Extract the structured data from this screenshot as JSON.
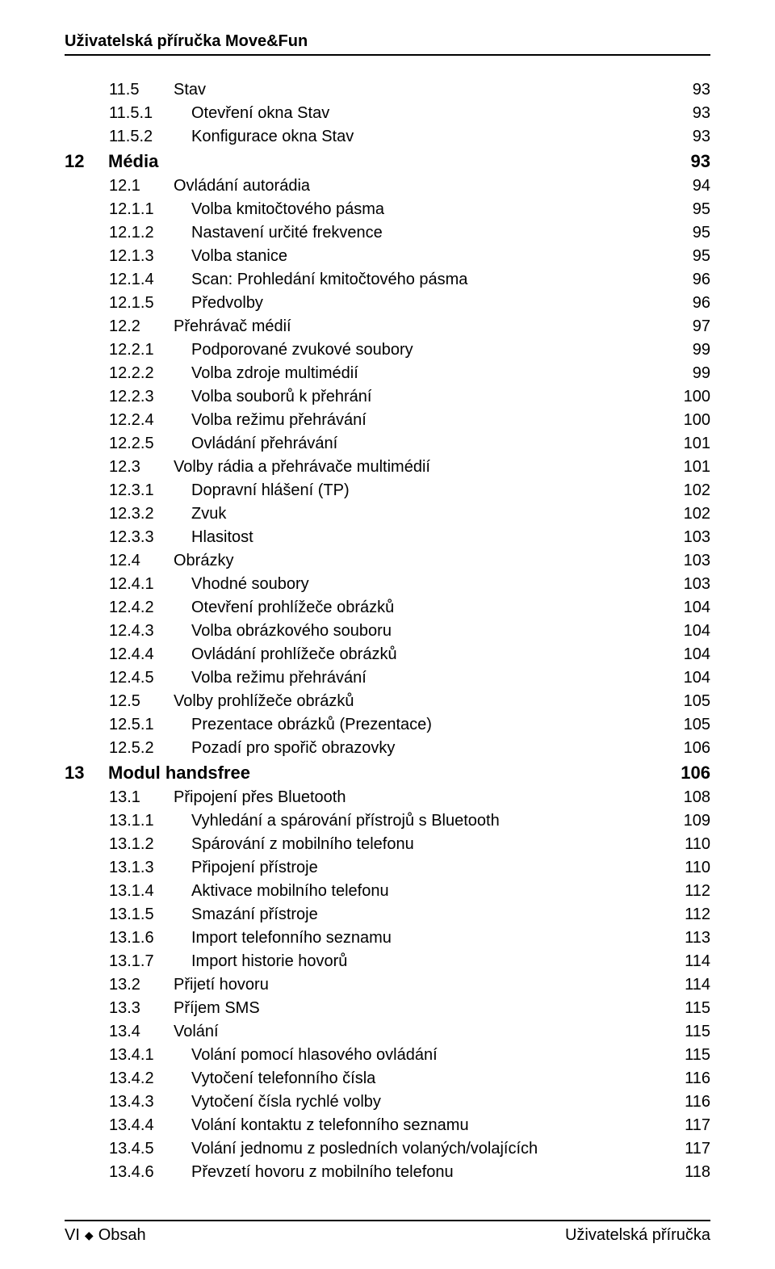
{
  "header": "Uživatelská příručka Move&Fun",
  "footer": {
    "left_prefix": "VI",
    "left_separator": "◆",
    "left_text": "Obsah",
    "right_text": "Uživatelská příručka"
  },
  "toc": [
    {
      "level": 1,
      "num": "11.5",
      "title": "Stav",
      "page": "93"
    },
    {
      "level": 2,
      "num": "11.5.1",
      "title": "Otevření okna Stav",
      "page": "93"
    },
    {
      "level": 2,
      "num": "11.5.2",
      "title": "Konfigurace okna Stav",
      "page": "93"
    },
    {
      "level": 0,
      "num": "12",
      "title": "Média",
      "page": "93"
    },
    {
      "level": 1,
      "num": "12.1",
      "title": "Ovládání autorádia",
      "page": "94"
    },
    {
      "level": 2,
      "num": "12.1.1",
      "title": "Volba kmitočtového pásma",
      "page": "95"
    },
    {
      "level": 2,
      "num": "12.1.2",
      "title": "Nastavení určité frekvence",
      "page": "95"
    },
    {
      "level": 2,
      "num": "12.1.3",
      "title": "Volba stanice",
      "page": "95"
    },
    {
      "level": 2,
      "num": "12.1.4",
      "title": "Scan: Prohledání kmitočtového pásma",
      "page": "96"
    },
    {
      "level": 2,
      "num": "12.1.5",
      "title": "Předvolby",
      "page": "96"
    },
    {
      "level": 1,
      "num": "12.2",
      "title": "Přehrávač médií",
      "page": "97"
    },
    {
      "level": 2,
      "num": "12.2.1",
      "title": "Podporované zvukové soubory",
      "page": "99"
    },
    {
      "level": 2,
      "num": "12.2.2",
      "title": "Volba zdroje multimédií",
      "page": "99"
    },
    {
      "level": 2,
      "num": "12.2.3",
      "title": "Volba souborů k přehrání",
      "page": "100"
    },
    {
      "level": 2,
      "num": "12.2.4",
      "title": "Volba režimu přehrávání",
      "page": "100"
    },
    {
      "level": 2,
      "num": "12.2.5",
      "title": "Ovládání přehrávání",
      "page": "101"
    },
    {
      "level": 1,
      "num": "12.3",
      "title": "Volby rádia a přehrávače multimédií",
      "page": "101"
    },
    {
      "level": 2,
      "num": "12.3.1",
      "title": "Dopravní hlášení (TP)",
      "page": "102"
    },
    {
      "level": 2,
      "num": "12.3.2",
      "title": "Zvuk",
      "page": "102"
    },
    {
      "level": 2,
      "num": "12.3.3",
      "title": "Hlasitost",
      "page": "103"
    },
    {
      "level": 1,
      "num": "12.4",
      "title": "Obrázky",
      "page": "103"
    },
    {
      "level": 2,
      "num": "12.4.1",
      "title": "Vhodné soubory",
      "page": "103"
    },
    {
      "level": 2,
      "num": "12.4.2",
      "title": "Otevření prohlížeče obrázků",
      "page": "104"
    },
    {
      "level": 2,
      "num": "12.4.3",
      "title": "Volba obrázkového souboru",
      "page": "104"
    },
    {
      "level": 2,
      "num": "12.4.4",
      "title": "Ovládání prohlížeče obrázků",
      "page": "104"
    },
    {
      "level": 2,
      "num": "12.4.5",
      "title": "Volba režimu přehrávání",
      "page": "104"
    },
    {
      "level": 1,
      "num": "12.5",
      "title": "Volby prohlížeče obrázků",
      "page": "105"
    },
    {
      "level": 2,
      "num": "12.5.1",
      "title": "Prezentace obrázků (Prezentace)",
      "page": "105"
    },
    {
      "level": 2,
      "num": "12.5.2",
      "title": "Pozadí pro spořič obrazovky",
      "page": "106"
    },
    {
      "level": 0,
      "num": "13",
      "title": "Modul handsfree",
      "page": "106"
    },
    {
      "level": 1,
      "num": "13.1",
      "title": "Připojení přes Bluetooth",
      "page": "108"
    },
    {
      "level": 2,
      "num": "13.1.1",
      "title": "Vyhledání a spárování přístrojů s Bluetooth",
      "page": "109"
    },
    {
      "level": 2,
      "num": "13.1.2",
      "title": "Spárování z mobilního telefonu",
      "page": "110"
    },
    {
      "level": 2,
      "num": "13.1.3",
      "title": "Připojení přístroje",
      "page": "110"
    },
    {
      "level": 2,
      "num": "13.1.4",
      "title": "Aktivace mobilního telefonu",
      "page": "112"
    },
    {
      "level": 2,
      "num": "13.1.5",
      "title": "Smazání přístroje",
      "page": "112"
    },
    {
      "level": 2,
      "num": "13.1.6",
      "title": "Import telefonního seznamu",
      "page": "113"
    },
    {
      "level": 2,
      "num": "13.1.7",
      "title": "Import historie hovorů",
      "page": "114"
    },
    {
      "level": 1,
      "num": "13.2",
      "title": "Přijetí hovoru",
      "page": "114"
    },
    {
      "level": 1,
      "num": "13.3",
      "title": "Příjem SMS",
      "page": "115"
    },
    {
      "level": 1,
      "num": "13.4",
      "title": "Volání",
      "page": "115"
    },
    {
      "level": 2,
      "num": "13.4.1",
      "title": "Volání pomocí hlasového ovládání",
      "page": "115"
    },
    {
      "level": 2,
      "num": "13.4.2",
      "title": "Vytočení telefonního čísla",
      "page": "116"
    },
    {
      "level": 2,
      "num": "13.4.3",
      "title": "Vytočení čísla rychlé volby",
      "page": "116"
    },
    {
      "level": 2,
      "num": "13.4.4",
      "title": "Volání kontaktu z telefonního seznamu",
      "page": "117"
    },
    {
      "level": 2,
      "num": "13.4.5",
      "title": "Volání jednomu z posledních volaných/volajících",
      "page": "117"
    },
    {
      "level": 2,
      "num": "13.4.6",
      "title": "Převzetí hovoru z mobilního telefonu",
      "page": "118"
    }
  ]
}
